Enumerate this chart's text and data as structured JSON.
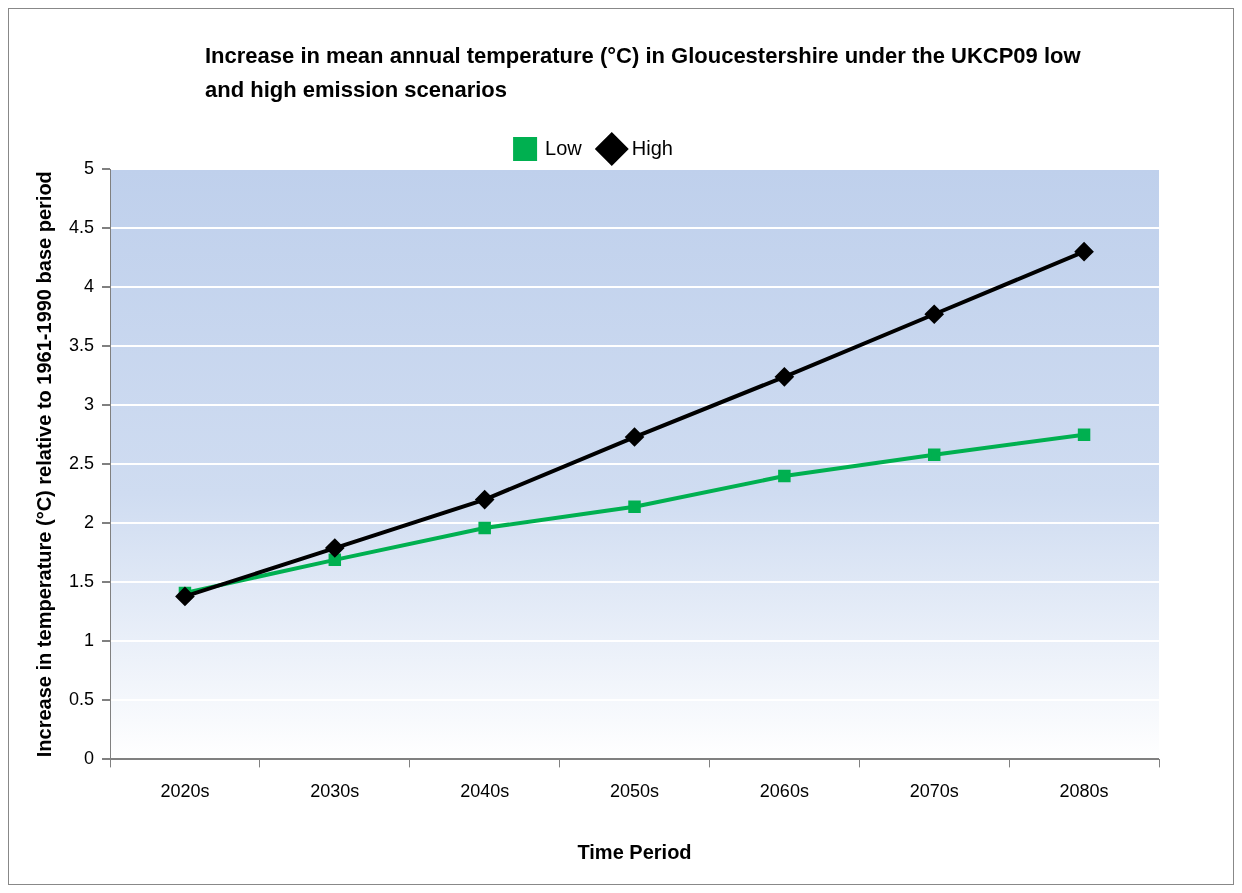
{
  "chart_data": {
    "type": "line",
    "title": "Increase in  mean annual temperature (°C) in Gloucestershire under the UKCP09 low and high emission scenarios",
    "xlabel": "Time Period",
    "ylabel": "Increase in temperature (°C) relative to 1961-1990 base period",
    "categories": [
      "2020s",
      "2030s",
      "2040s",
      "2050s",
      "2060s",
      "2070s",
      "2080s"
    ],
    "series": [
      {
        "name": "Low",
        "color": "#00b050",
        "marker": "square",
        "values": [
          1.41,
          1.69,
          1.96,
          2.14,
          2.4,
          2.58,
          2.75
        ]
      },
      {
        "name": "High",
        "color": "#000000",
        "marker": "diamond",
        "values": [
          1.38,
          1.79,
          2.2,
          2.73,
          3.24,
          3.77,
          4.3
        ]
      }
    ],
    "ylim": [
      0,
      5
    ],
    "yticks": [
      0,
      0.5,
      1,
      1.5,
      2,
      2.5,
      3,
      3.5,
      4,
      4.5,
      5
    ],
    "grid": "y",
    "legend": "top"
  }
}
